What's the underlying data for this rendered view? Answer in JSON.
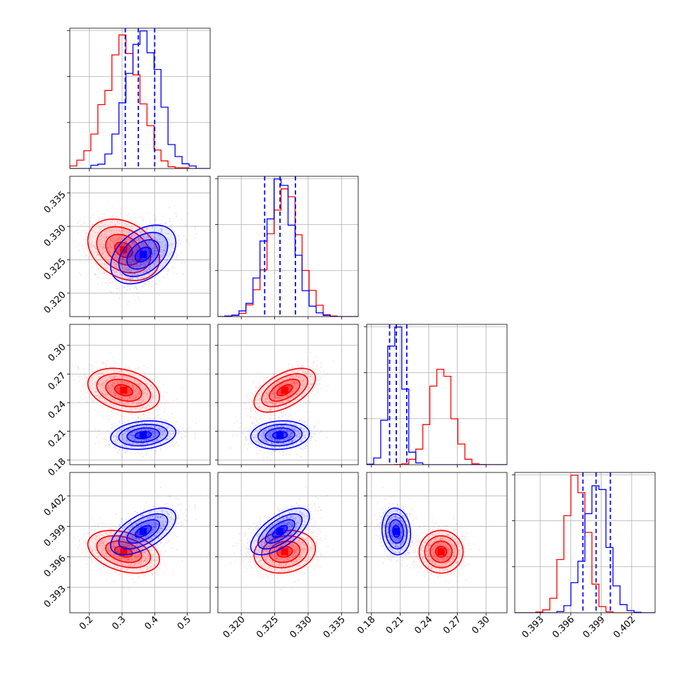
{
  "chart_data": {
    "type": "corner",
    "title": "",
    "params": [
      {
        "range": [
          0.14,
          0.57
        ],
        "ticks": [
          0.2,
          0.3,
          0.4,
          0.5
        ],
        "tick_labels": [
          "0.2",
          "0.3",
          "0.4",
          "0.5"
        ]
      },
      {
        "range": [
          0.3165,
          0.3375
        ],
        "ticks": [
          0.32,
          0.325,
          0.33,
          0.335
        ],
        "tick_labels": [
          "0.320",
          "0.325",
          "0.330",
          "0.335"
        ]
      },
      {
        "range": [
          0.175,
          0.322
        ],
        "ticks": [
          0.18,
          0.21,
          0.24,
          0.27,
          0.3
        ],
        "tick_labels": [
          "0.18",
          "0.21",
          "0.24",
          "0.27",
          "0.30"
        ]
      },
      {
        "range": [
          0.3905,
          0.4043
        ],
        "ticks": [
          0.393,
          0.396,
          0.399,
          0.402
        ],
        "tick_labels": [
          "0.393",
          "0.396",
          "0.399",
          "0.402"
        ]
      }
    ],
    "series": [
      {
        "color": "#ff0000",
        "means": [
          0.305,
          0.3265,
          0.253,
          0.3965
        ],
        "sds": [
          0.055,
          0.0023,
          0.0115,
          0.00105
        ],
        "corr": [
          [
            1,
            -0.3,
            -0.3,
            -0.35
          ],
          [
            -0.3,
            1,
            0.55,
            0.15
          ],
          [
            -0.3,
            0.55,
            1,
            0.0
          ],
          [
            -0.35,
            0.15,
            0.0,
            1
          ]
        ]
      },
      {
        "color": "#0000ff",
        "means": [
          0.365,
          0.3258,
          0.206,
          0.3985
        ],
        "sds": [
          0.05,
          0.0022,
          0.0075,
          0.00115
        ],
        "corr": [
          [
            1,
            0.4,
            0.2,
            0.6
          ],
          [
            0.4,
            1,
            0.1,
            0.65
          ],
          [
            0.2,
            0.1,
            1,
            -0.1
          ],
          [
            0.6,
            0.65,
            -0.1,
            1
          ]
        ]
      }
    ],
    "quantile_lines": {
      "color": "#0000ff",
      "style": "dashed",
      "values": [
        [
          0.31,
          0.35,
          0.4
        ],
        [
          0.3235,
          0.3258,
          0.3281
        ],
        [
          0.199,
          0.206,
          0.217
        ],
        [
          0.3972,
          0.3985,
          0.3999
        ]
      ]
    },
    "grid": true
  }
}
